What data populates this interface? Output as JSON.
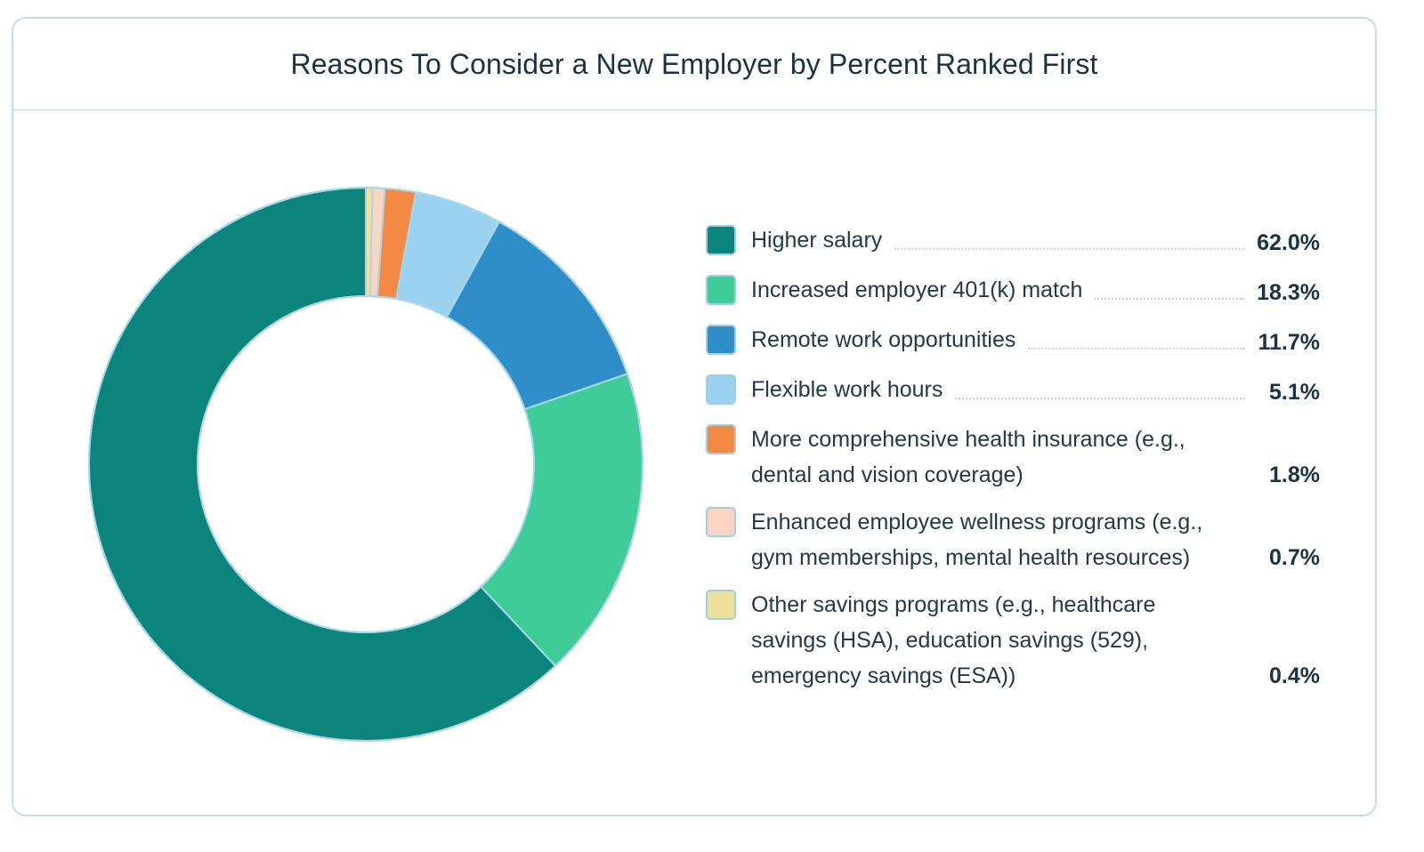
{
  "chart_data": {
    "type": "pie",
    "title": "Reasons To Consider a New Employer by Percent Ranked First",
    "categories": [
      "Higher salary",
      "Increased employer 401(k) match",
      "Remote work opportunities",
      "Flexible work hours",
      "More comprehensive health insurance (e.g., dental and vision coverage)",
      "Enhanced employee wellness programs (e.g., gym memberships, mental health resources)",
      "Other savings programs (e.g., healthcare savings (HSA), education savings (529), emergency savings (ESA))"
    ],
    "values": [
      62.0,
      18.3,
      11.7,
      5.1,
      1.8,
      0.7,
      0.4
    ],
    "value_labels": [
      "62.0%",
      "18.3%",
      "11.7%",
      "5.1%",
      "1.8%",
      "0.7%",
      "0.4%"
    ],
    "colors": [
      "#0b857b",
      "#3ecd98",
      "#2f8ec8",
      "#9ad2f0",
      "#f28a44",
      "#fbd5c3",
      "#efe09c"
    ],
    "legend_lines": [
      [
        "Higher salary"
      ],
      [
        "Increased employer 401(k) match"
      ],
      [
        "Remote work opportunities"
      ],
      [
        "Flexible work hours"
      ],
      [
        "More comprehensive health insurance (e.g.,",
        "dental and vision coverage)"
      ],
      [
        "Enhanced employee wellness programs (e.g.,",
        "gym memberships, mental health resources)"
      ],
      [
        "Other savings programs (e.g., healthcare",
        "savings (HSA), education savings (529),",
        "emergency savings (ESA))"
      ]
    ],
    "legend_placement": "right",
    "start_angle": "top, clockwise",
    "slice_order": "reverse of legend"
  }
}
